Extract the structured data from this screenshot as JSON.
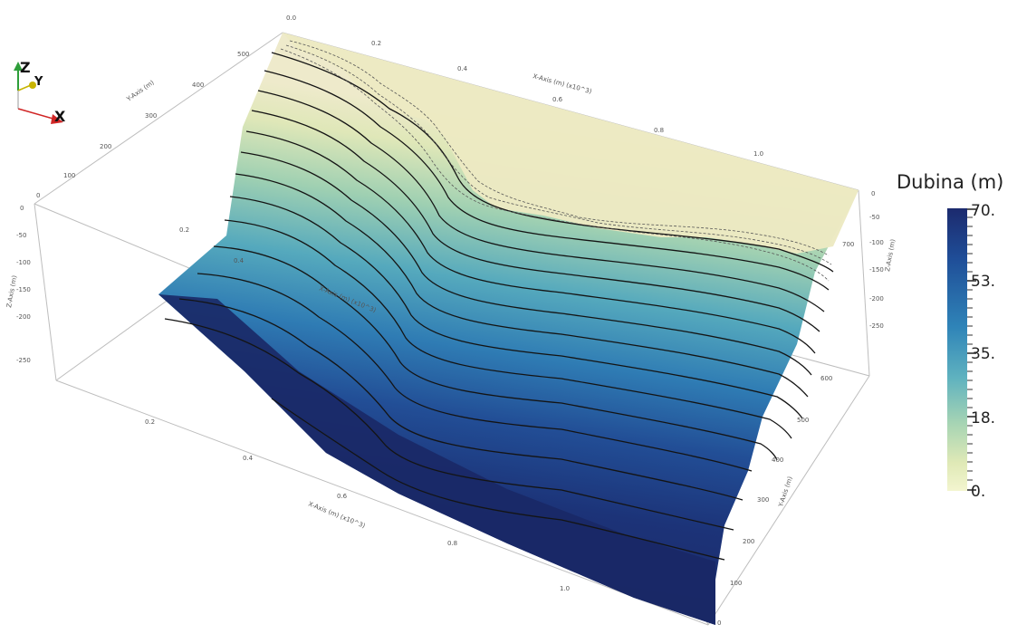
{
  "orientation": {
    "z_label": "Z",
    "y_label": "Y",
    "x_label": "X",
    "colors": {
      "z": "#2e9e3a",
      "y": "#c8b400",
      "x": "#d02525"
    }
  },
  "legend": {
    "title": "Dubina (m)",
    "ticks": [
      "70.",
      "53.",
      "35.",
      "18.",
      "0."
    ],
    "colormap": [
      "#1c2a6e",
      "#1f4e98",
      "#2f84b8",
      "#5fb2bf",
      "#a6d4b4",
      "#dfe9b6",
      "#f2f4cc"
    ]
  },
  "axes": {
    "x_title": "X-Axis (m) (x10^3)",
    "y_title": "Y-Axis (m)",
    "z_title": "Z-Axis (m)",
    "x_ticks": [
      "0.0",
      "0.2",
      "0.4",
      "0.6",
      "0.8",
      "1.0"
    ],
    "front_x_ticks": [
      "0.2",
      "0.4",
      "0.6",
      "0.8",
      "1.0"
    ],
    "y_ticks": [
      "0",
      "100",
      "200",
      "300",
      "400",
      "500"
    ],
    "z_ticks": [
      "0",
      "-50",
      "-100",
      "-150",
      "-200",
      "-250"
    ],
    "right_z_ticks": [
      "0",
      "-50",
      "-100",
      "-150",
      "-200",
      "-250"
    ],
    "right_y_ticks": [
      "0",
      "100",
      "200",
      "300",
      "400",
      "500",
      "600",
      "700"
    ]
  },
  "surface": {
    "shallow_color": "#ece9c2",
    "contour_color": "#141414"
  }
}
